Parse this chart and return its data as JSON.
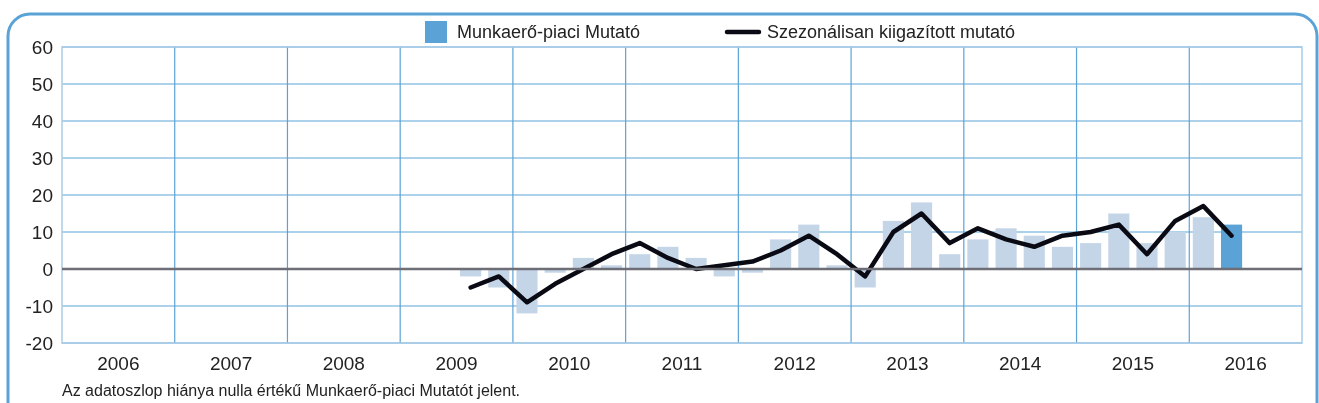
{
  "chart_data": {
    "type": "bar",
    "legend": "top",
    "grid": true,
    "xlim": [
      2006,
      2017
    ],
    "xticks": [
      {
        "value": 2006.5,
        "label": "2006"
      },
      {
        "value": 2007,
        "label": null
      },
      {
        "value": 2007.5,
        "label": "2007"
      },
      {
        "value": 2008,
        "label": null
      },
      {
        "value": 2008.5,
        "label": "2008"
      },
      {
        "value": 2009,
        "label": null
      },
      {
        "value": 2009.5,
        "label": "2009"
      },
      {
        "value": 2010,
        "label": null
      },
      {
        "value": 2010.5,
        "label": "2010"
      },
      {
        "value": 2011,
        "label": null
      },
      {
        "value": 2011.5,
        "label": "2011"
      },
      {
        "value": 2012,
        "label": null
      },
      {
        "value": 2012.5,
        "label": "2012"
      },
      {
        "value": 2013,
        "label": null
      },
      {
        "value": 2013.5,
        "label": "2013"
      },
      {
        "value": 2014,
        "label": null
      },
      {
        "value": 2014.5,
        "label": "2014"
      },
      {
        "value": 2015,
        "label": null
      },
      {
        "value": 2015.5,
        "label": "2015"
      },
      {
        "value": 2016,
        "label": null
      },
      {
        "value": 2016.5,
        "label": "2016"
      }
    ],
    "ylim": [
      -20,
      60
    ],
    "yticks": [
      -20,
      -10,
      0,
      10,
      20,
      30,
      40,
      50,
      60
    ],
    "annotations": [
      "Az adatoszlop hiánya nulla értékű Munkaerő-piaci Mutatót jelent."
    ],
    "series": [
      {
        "name": "Munkaerő-piaci Mutató",
        "color": "#5ba3d6",
        "x": [
          2009.625,
          2009.875,
          2010.125,
          2010.375,
          2010.625,
          2010.875,
          2011.125,
          2011.375,
          2011.625,
          2011.875,
          2012.125,
          2012.375,
          2012.625,
          2012.875,
          2013.125,
          2013.375,
          2013.625,
          2013.875,
          2014.125,
          2014.375,
          2014.625,
          2014.875,
          2015.125,
          2015.375,
          2015.625,
          2015.875,
          2016.125,
          2016.375
        ],
        "values": [
          -2,
          -5,
          -12,
          -1,
          3,
          1,
          4,
          6,
          3,
          -2,
          -1,
          8,
          12,
          1,
          -5,
          13,
          18,
          4,
          8,
          11,
          9,
          6,
          7,
          15,
          7,
          10,
          14,
          12
        ],
        "colors": [
          "#c5d5e8",
          "#c5d5e8",
          "#c5d5e8",
          "#c5d5e8",
          "#c5d5e8",
          "#c5d5e8",
          "#c5d5e8",
          "#c5d5e8",
          "#c5d5e8",
          "#c5d5e8",
          "#c5d5e8",
          "#c5d5e8",
          "#c5d5e8",
          "#c5d5e8",
          "#c5d5e8",
          "#c5d5e8",
          "#c5d5e8",
          "#c5d5e8",
          "#c5d5e8",
          "#c5d5e8",
          "#c5d5e8",
          "#c5d5e8",
          "#c5d5e8",
          "#c5d5e8",
          "#c5d5e8",
          "#c5d5e8",
          "#c5d5e8",
          "#5ba3d6"
        ]
      },
      {
        "name": "Szezonálisan kiigazított mutató",
        "type": "line",
        "color": "#0a0a14",
        "x": [
          2009.625,
          2009.875,
          2010.125,
          2010.375,
          2010.625,
          2010.875,
          2011.125,
          2011.375,
          2011.625,
          2011.875,
          2012.125,
          2012.375,
          2012.625,
          2012.875,
          2013.125,
          2013.375,
          2013.625,
          2013.875,
          2014.125,
          2014.375,
          2014.625,
          2014.875,
          2015.125,
          2015.375,
          2015.625,
          2015.875,
          2016.125,
          2016.375
        ],
        "values": [
          -5,
          -2,
          -9,
          -4,
          0,
          4,
          7,
          3,
          0,
          1,
          2,
          5,
          9,
          4,
          -2,
          10,
          15,
          7,
          11,
          8,
          6,
          9,
          10,
          12,
          4,
          13,
          17,
          9
        ]
      }
    ]
  }
}
